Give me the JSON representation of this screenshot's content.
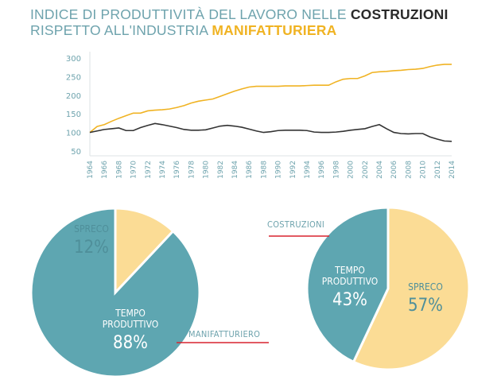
{
  "title": {
    "line1_prefix": "INDICE DI PRODUTTIVITÀ DEL LAVORO NELLE ",
    "line1_highlight": "COSTRUZIONI",
    "line2_prefix": "RISPETTO ALL'INDUSTRIA ",
    "line2_highlight": "MANIFATTURIERA"
  },
  "colors": {
    "teal": "#5ea6b1",
    "yellow": "#fbdc95",
    "orange": "#f0b323",
    "dark": "#333333",
    "red": "#d9232e",
    "axis": "#6ea3ad"
  },
  "chart_data": [
    {
      "type": "line",
      "title": "Indice di produttività del lavoro nelle costruzioni rispetto all'industria manifatturiera",
      "ylim": [
        50,
        300
      ],
      "yticks": [
        300,
        250,
        200,
        150,
        100,
        50
      ],
      "x": [
        1964,
        1965,
        1966,
        1967,
        1968,
        1969,
        1970,
        1971,
        1972,
        1973,
        1974,
        1975,
        1976,
        1977,
        1978,
        1979,
        1980,
        1981,
        1982,
        1983,
        1984,
        1985,
        1986,
        1987,
        1988,
        1989,
        1990,
        1991,
        1992,
        1993,
        1994,
        1995,
        1996,
        1997,
        1998,
        1999,
        2000,
        2001,
        2002,
        2003,
        2004,
        2005,
        2006,
        2007,
        2008,
        2009,
        2010,
        2011,
        2012,
        2013,
        2014
      ],
      "xticks": [
        1964,
        1966,
        1968,
        1970,
        1972,
        1974,
        1976,
        1978,
        1980,
        1982,
        1984,
        1986,
        1988,
        1990,
        1992,
        1994,
        1996,
        1998,
        2000,
        2002,
        2004,
        2006,
        2008,
        2010,
        2012,
        2014
      ],
      "grid": false,
      "series": [
        {
          "name": "Manifatturiera",
          "color": "#f0b323",
          "values": [
            100,
            116,
            121,
            130,
            138,
            145,
            152,
            152,
            158,
            160,
            161,
            163,
            167,
            172,
            179,
            184,
            187,
            190,
            197,
            204,
            211,
            217,
            222,
            224,
            224,
            224,
            224,
            225,
            225,
            225,
            226,
            227,
            227,
            227,
            236,
            243,
            245,
            245,
            252,
            261,
            263,
            264,
            266,
            267,
            269,
            270,
            272,
            277,
            281,
            283,
            283
          ]
        },
        {
          "name": "Costruzioni",
          "color": "#333333",
          "values": [
            100,
            104,
            108,
            110,
            112,
            105,
            105,
            113,
            119,
            124,
            121,
            117,
            113,
            108,
            106,
            106,
            107,
            112,
            117,
            119,
            117,
            114,
            109,
            104,
            100,
            102,
            105,
            106,
            106,
            106,
            105,
            101,
            100,
            100,
            101,
            103,
            106,
            108,
            110,
            116,
            121,
            110,
            100,
            97,
            96,
            97,
            97,
            88,
            82,
            77,
            76
          ]
        }
      ]
    },
    {
      "type": "pie",
      "name": "MANIFATTURIERO",
      "slices": [
        {
          "label": "TEMPO PRODUTTIVO",
          "value": 88,
          "text": "88%",
          "color": "#5ea6b1"
        },
        {
          "label": "SPRECO",
          "value": 12,
          "text": "12%",
          "color": "#fbdc95"
        }
      ]
    },
    {
      "type": "pie",
      "name": "COSTRUZIONI",
      "slices": [
        {
          "label": "SPRECO",
          "value": 57,
          "text": "57%",
          "color": "#fbdc95"
        },
        {
          "label": "TEMPO PRODUTTIVO",
          "value": 43,
          "text": "43%",
          "color": "#5ea6b1"
        }
      ]
    }
  ]
}
